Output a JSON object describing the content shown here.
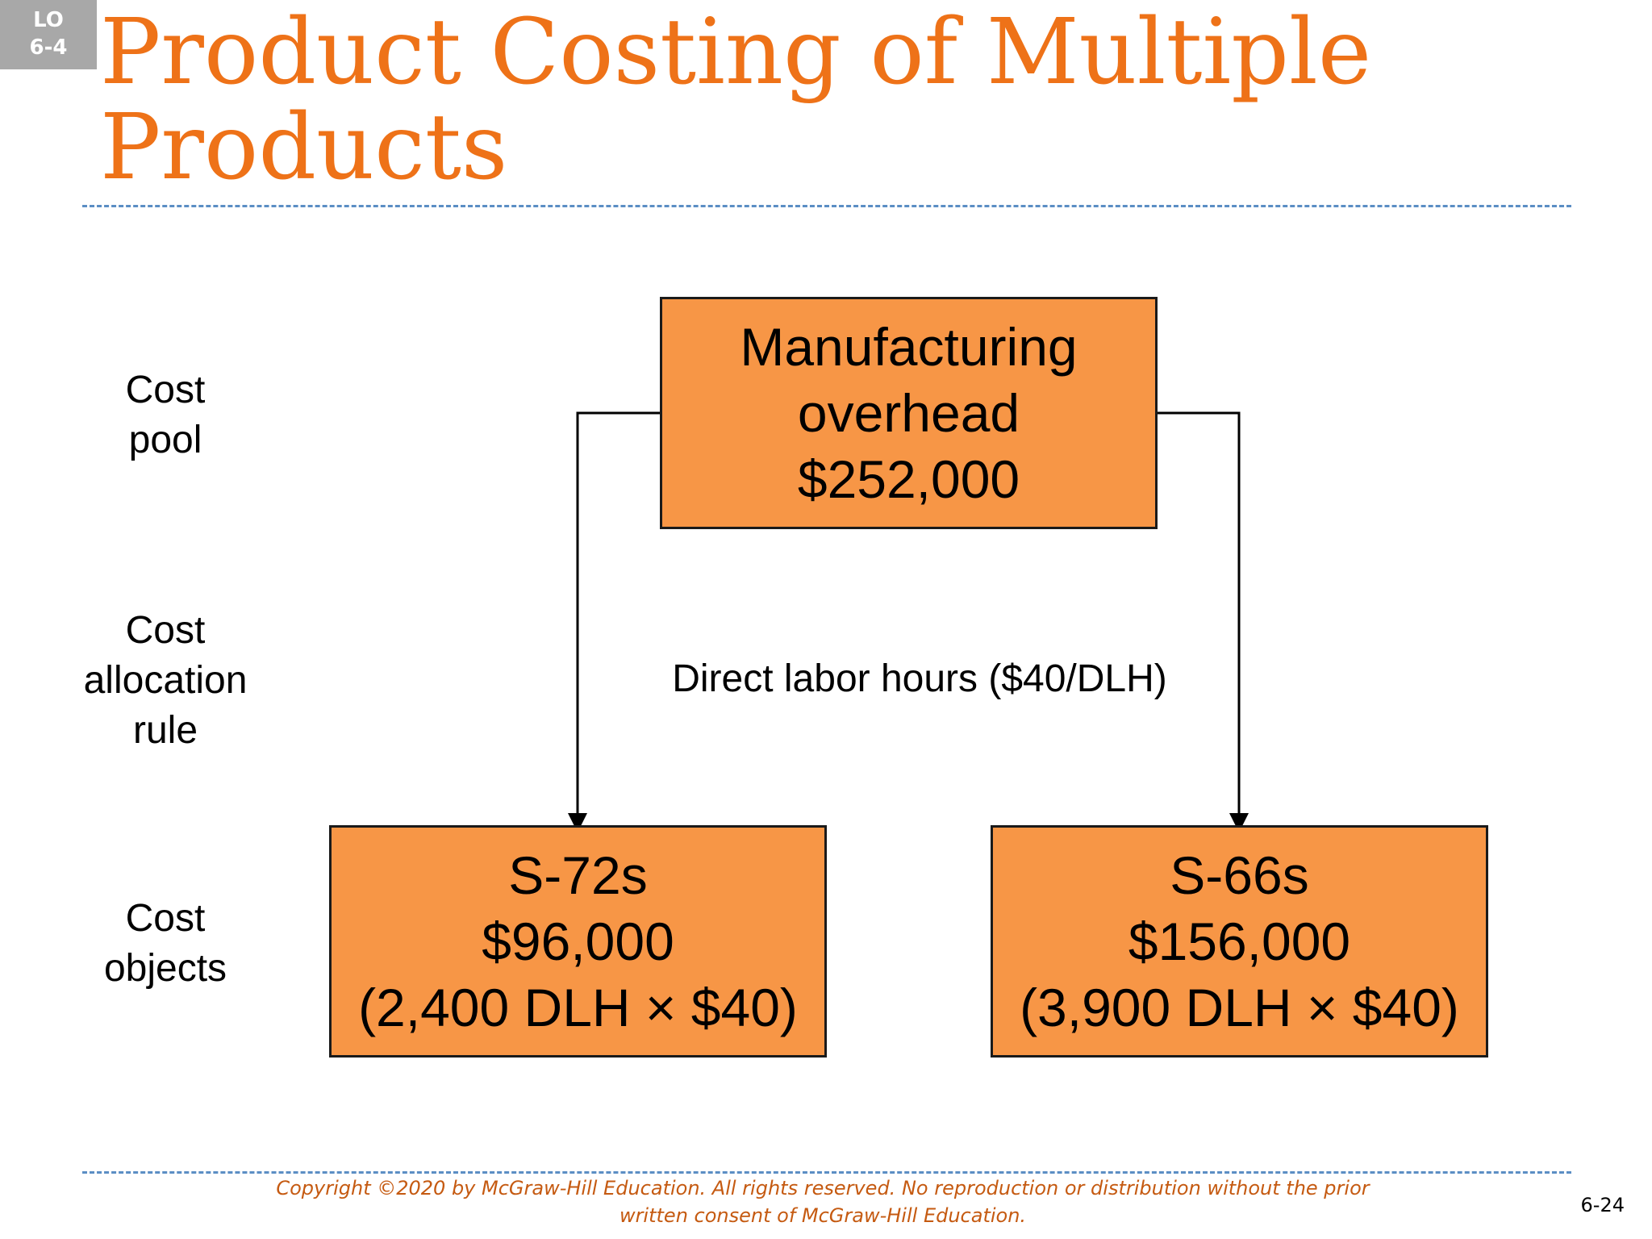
{
  "badge": {
    "line1": "LO",
    "line2": "6-4"
  },
  "title": {
    "line1": "Product Costing of Multiple",
    "line2": "Products"
  },
  "row_labels": {
    "cost_pool": [
      "Cost",
      "pool"
    ],
    "allocation_rule": [
      "Cost",
      "allocation",
      "rule"
    ],
    "cost_objects": [
      "Cost",
      "objects"
    ]
  },
  "cost_pool_box": {
    "name_line1": "Manufacturing",
    "name_line2": "overhead",
    "amount": "$252,000"
  },
  "allocation_rule_text": "Direct labor hours ($40/DLH)",
  "cost_objects": [
    {
      "name": "S-72s",
      "amount": "$96,000",
      "calculation": "(2,400 DLH × $40)"
    },
    {
      "name": "S-66s",
      "amount": "$156,000",
      "calculation": "(3,900 DLH × $40)"
    }
  ],
  "footer": {
    "copyright_line1": "Copyright ©2020 by McGraw-Hill Education. All rights reserved. No reproduction or distribution without the prior",
    "copyright_line2": "written consent of McGraw-Hill Education.",
    "page_number": "6-24"
  },
  "colors": {
    "title": "#ee7218",
    "box_fill": "#f79646",
    "divider": "#5b8ec4",
    "footer_text": "#c55a11",
    "badge": "#a8a8a8"
  }
}
